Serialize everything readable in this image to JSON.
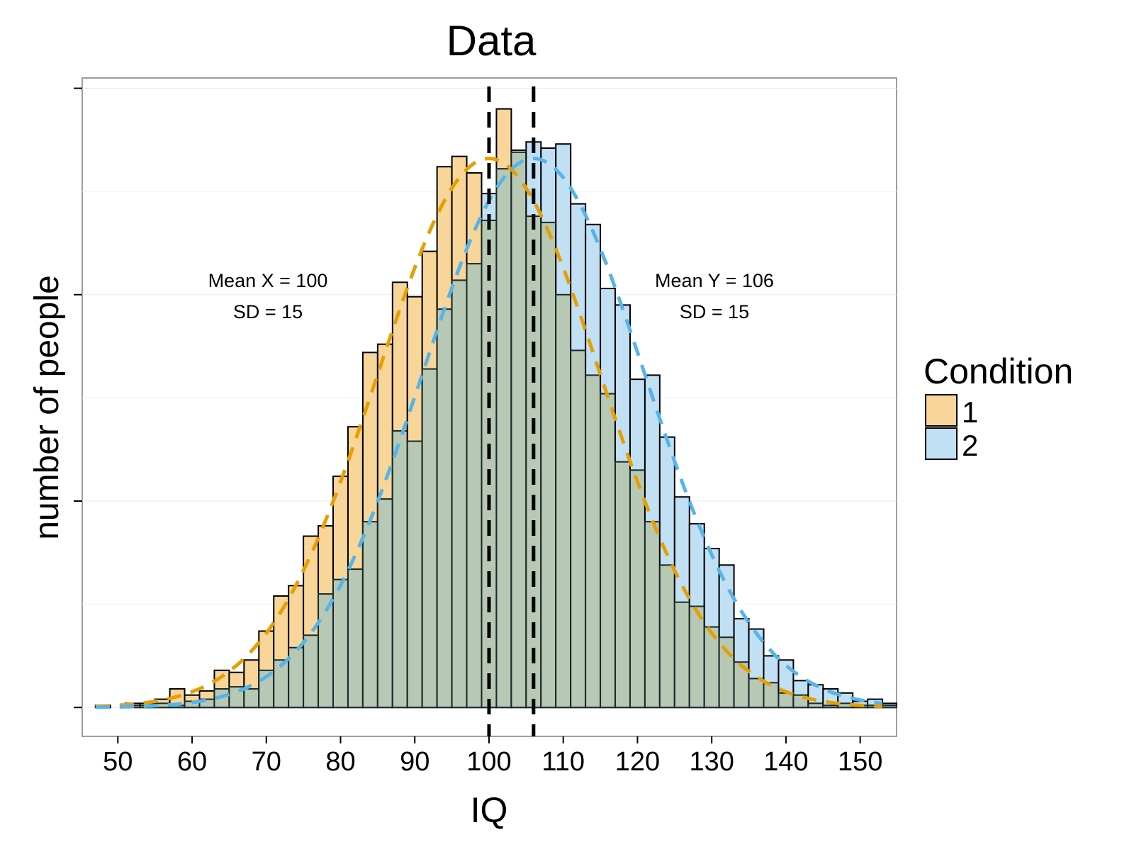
{
  "chart_data": {
    "type": "bar",
    "subtype": "overlapping-histogram",
    "title": "Data",
    "xlabel": "IQ",
    "ylabel": "number of people",
    "xlim": [
      45.2,
      154.9
    ],
    "ylim": [
      -0.14,
      3.05
    ],
    "x_ticks": [
      50,
      60,
      70,
      80,
      90,
      100,
      110,
      120,
      130,
      140,
      150
    ],
    "y_ticks": [
      0,
      1,
      2,
      3
    ],
    "y_tick_labels_shown": false,
    "grid": true,
    "bin_width": 2,
    "bin_centers": [
      48,
      50,
      52,
      54,
      56,
      58,
      60,
      62,
      64,
      66,
      68,
      70,
      72,
      74,
      76,
      78,
      80,
      82,
      84,
      86,
      88,
      90,
      92,
      94,
      96,
      98,
      100,
      102,
      104,
      106,
      108,
      110,
      112,
      114,
      116,
      118,
      120,
      122,
      124,
      126,
      128,
      130,
      132,
      134,
      136,
      138,
      140,
      142,
      144,
      146,
      148,
      150,
      152,
      154
    ],
    "series": [
      {
        "name": "1",
        "color": "#F8D699",
        "values": [
          0.01,
          0.0,
          0.02,
          0.02,
          0.04,
          0.09,
          0.06,
          0.08,
          0.18,
          0.17,
          0.23,
          0.37,
          0.54,
          0.59,
          0.83,
          0.88,
          1.12,
          1.36,
          1.72,
          1.76,
          2.06,
          1.99,
          2.21,
          2.62,
          2.67,
          2.59,
          2.36,
          2.9,
          2.69,
          2.38,
          2.35,
          2.0,
          1.73,
          1.61,
          1.52,
          1.19,
          1.15,
          0.9,
          0.69,
          0.51,
          0.49,
          0.39,
          0.34,
          0.22,
          0.14,
          0.12,
          0.07,
          0.06,
          0.02,
          0.01,
          0.02,
          0.01,
          0.01,
          0.01
        ]
      },
      {
        "name": "2",
        "color": "#C2E0F4",
        "values": [
          0.01,
          0.0,
          0.01,
          0.01,
          0.02,
          0.01,
          0.03,
          0.04,
          0.09,
          0.1,
          0.09,
          0.18,
          0.23,
          0.29,
          0.35,
          0.55,
          0.62,
          0.67,
          0.9,
          1.01,
          1.34,
          1.29,
          1.64,
          1.93,
          2.07,
          2.15,
          2.49,
          2.61,
          2.7,
          2.74,
          2.71,
          2.73,
          2.44,
          2.34,
          2.03,
          1.95,
          1.59,
          1.61,
          1.31,
          1.02,
          0.89,
          0.77,
          0.69,
          0.43,
          0.38,
          0.25,
          0.23,
          0.13,
          0.11,
          0.09,
          0.07,
          0.03,
          0.04,
          0.02
        ]
      }
    ],
    "overlap_color": "#B7C9B5",
    "density_curves": [
      {
        "series": "1",
        "mean": 100,
        "sd": 15,
        "peak_height": 2.66,
        "color": "#E69F00",
        "style": "dashed"
      },
      {
        "series": "2",
        "mean": 106,
        "sd": 15,
        "peak_height": 2.66,
        "color": "#56B4E9",
        "style": "dashed"
      }
    ],
    "vlines": [
      {
        "x": 100,
        "color": "#000000",
        "style": "dashed"
      },
      {
        "x": 106,
        "color": "#000000",
        "style": "dashed"
      }
    ],
    "annotations": [
      {
        "line1": "Mean X = 100",
        "line2": "SD = 15",
        "x": 100,
        "y": 1.97
      },
      {
        "line1": "Mean Y = 106",
        "line2": "SD = 15",
        "x": 160,
        "y": 1.97
      }
    ],
    "legend": {
      "title": "Condition",
      "position": "right",
      "items": [
        "1",
        "2"
      ]
    }
  }
}
